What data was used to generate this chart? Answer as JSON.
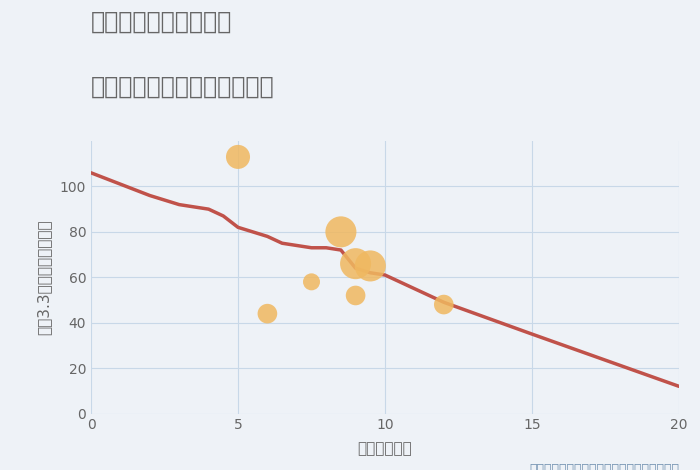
{
  "title_line1": "福岡県太宰府市宰府の",
  "title_line2": "駅距離別中古マンション価格",
  "xlabel": "駅距離（分）",
  "ylabel": "坪（3.3㎡）単価（万円）",
  "background_color": "#eef2f7",
  "plot_bg_color": "#eef2f7",
  "line_x": [
    0,
    1,
    2,
    3,
    3.5,
    4,
    4.5,
    5,
    5.5,
    6,
    6.5,
    7,
    7.5,
    8,
    8.5,
    9,
    9.5,
    10,
    12,
    15,
    20
  ],
  "line_y": [
    106,
    101,
    96,
    92,
    91,
    90,
    87,
    82,
    80,
    78,
    75,
    74,
    73,
    73,
    72,
    64,
    62,
    61,
    49,
    35,
    12
  ],
  "line_color": "#c0524a",
  "line_width": 2.5,
  "scatter_x": [
    5,
    6,
    7.5,
    8.5,
    9,
    9,
    9.5,
    12
  ],
  "scatter_y": [
    113,
    44,
    58,
    80,
    66,
    52,
    65,
    48
  ],
  "scatter_sizes": [
    300,
    200,
    150,
    500,
    500,
    200,
    500,
    200
  ],
  "scatter_color": "#f0b860",
  "scatter_alpha": 0.85,
  "scatter_edgecolor": "none",
  "xlim": [
    0,
    20
  ],
  "ylim": [
    0,
    120
  ],
  "xticks": [
    0,
    5,
    10,
    15,
    20
  ],
  "yticks": [
    0,
    20,
    40,
    60,
    80,
    100
  ],
  "grid_color": "#c8d8e8",
  "annotation": "円の大きさは、取引のあった物件面積を示す",
  "annotation_color": "#7090b0",
  "title_color": "#666666",
  "tick_color": "#666666",
  "title_fontsize": 17,
  "label_fontsize": 11,
  "annotation_fontsize": 9
}
